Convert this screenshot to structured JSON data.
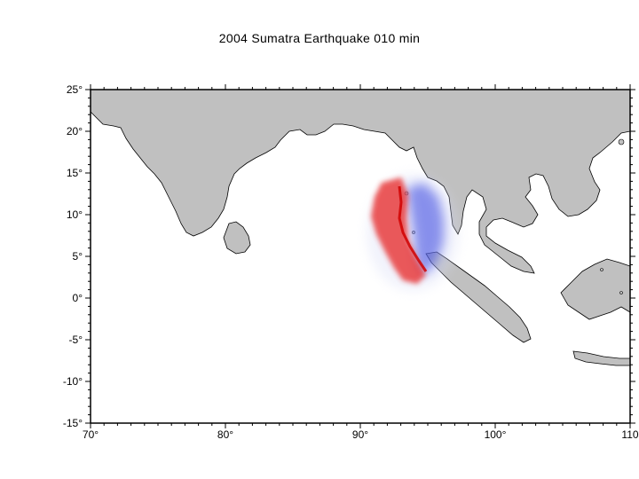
{
  "title": "2004 Sumatra Earthquake  010 min",
  "colors": {
    "ocean": "#ffffff",
    "land": "#c0c0c0",
    "coastline": "#000000",
    "wave_positive": "#e83030",
    "wave_negative": "#3040e0"
  },
  "map": {
    "lon_range": [
      70,
      110
    ],
    "lat_range": [
      -15,
      25
    ],
    "lon_ticks": [
      "70°",
      "80°",
      "90°",
      "100°",
      "110"
    ],
    "lat_ticks": [
      "25°",
      "20°",
      "15°",
      "10°",
      "5°",
      "0°",
      "-5°",
      "-10°",
      "-15°"
    ]
  }
}
